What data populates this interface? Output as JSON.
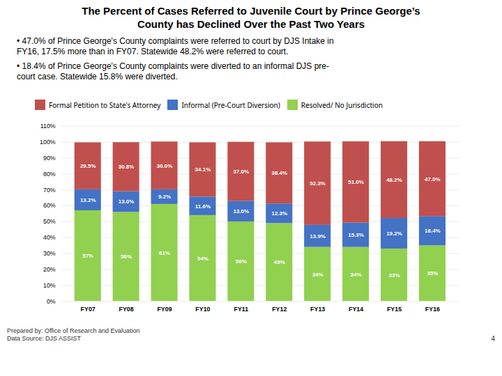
{
  "chart_data": {
    "type": "bar",
    "stacked": true,
    "title": "The Percent of Cases Referred to Juvenile Court by Prince George’s\nCounty has Declined Over the Past Two Years",
    "annotations": [
      "•  47.0% of Prince George's County complaints were referred to court by DJS Intake in\nFY16, 17.5% more than in FY07. Statewide 48.2% were referred to court.",
      "•  18.4% of Prince George's County complaints were diverted to an informal DJS pre-\ncourt case. Statewide 15.8% were diverted."
    ],
    "caption": "Prepared by: Office of Research and Evaluation\nData Source: DJS ASSIST",
    "page_number": "4",
    "categories": [
      "FY07",
      "FY08",
      "FY09",
      "FY10",
      "FY11",
      "FY12",
      "FY13",
      "FY14",
      "FY15",
      "FY16"
    ],
    "series": [
      {
        "name": "Resolved/ No Jurisdiction",
        "color": "#92D050",
        "values": [
          57,
          56,
          61,
          54,
          50,
          49,
          34,
          34,
          33,
          35
        ],
        "value_labels": [
          "57%",
          "56%",
          "61%",
          "54%",
          "50%",
          "49%",
          "34%",
          "34%",
          "33%",
          "35%"
        ]
      },
      {
        "name": "Informal (Pre-Court Diversion)",
        "color": "#4472C4",
        "values": [
          13.2,
          13.0,
          9.2,
          11.6,
          13.0,
          12.3,
          13.9,
          15.3,
          19.2,
          18.4
        ],
        "value_labels": [
          "13.2%",
          "13.0%",
          "9.2%",
          "11.6%",
          "13.0%",
          "12.3%",
          "13.9%",
          "15.3%",
          "19.2%",
          "18.4%"
        ]
      },
      {
        "name": "Formal Petition to State's Attorney",
        "color": "#C0504D",
        "values": [
          29.5,
          30.8,
          30.0,
          34.1,
          37.0,
          38.4,
          52.3,
          51.0,
          48.2,
          47.0
        ],
        "value_labels": [
          "29.5%",
          "30.8%",
          "30.0%",
          "34.1%",
          "37.0%",
          "38.4%",
          "52.3%",
          "51.0%",
          "48.2%",
          "47.0%"
        ]
      }
    ],
    "ylim": [
      0,
      110
    ],
    "yticks": [
      {
        "value": 0,
        "label": "0%"
      },
      {
        "value": 10,
        "label": "10%"
      },
      {
        "value": 20,
        "label": "20%"
      },
      {
        "value": 30,
        "label": "30%"
      },
      {
        "value": 40,
        "label": "40%"
      },
      {
        "value": 50,
        "label": "50%"
      },
      {
        "value": 60,
        "label": "60%"
      },
      {
        "value": 70,
        "label": "70%"
      },
      {
        "value": 80,
        "label": "80%"
      },
      {
        "value": 90,
        "label": "90%"
      },
      {
        "value": 100,
        "label": "100%"
      },
      {
        "value": 110,
        "label": "110%"
      }
    ],
    "grid": true,
    "data_labels": true,
    "legend": "top"
  }
}
